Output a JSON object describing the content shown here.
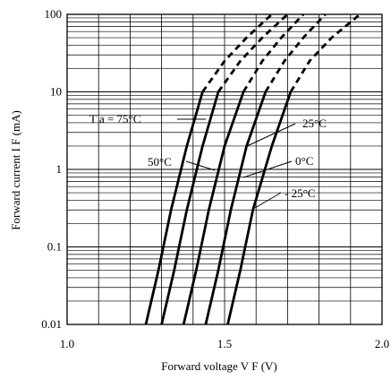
{
  "chart_data": {
    "type": "line",
    "xlabel": "Forward voltage V F (V)",
    "ylabel": "Forward current I F (mA)",
    "xlim": [
      1.0,
      2.0
    ],
    "ylim": [
      0.01,
      100
    ],
    "yscale": "log",
    "grid": true,
    "x_ticks": [
      "1.0",
      "1.5",
      "2.0"
    ],
    "y_ticks": [
      "0.01",
      "0.1",
      "1",
      "10",
      "100"
    ],
    "series": [
      {
        "name": "T a = 75°C",
        "solid": [
          [
            1.25,
            0.01
          ],
          [
            1.29,
            0.05
          ],
          [
            1.33,
            0.3
          ],
          [
            1.38,
            2
          ],
          [
            1.43,
            10
          ]
        ],
        "dashed": [
          [
            1.43,
            10
          ],
          [
            1.5,
            25
          ],
          [
            1.57,
            50
          ],
          [
            1.65,
            100
          ]
        ]
      },
      {
        "name": "50°C",
        "solid": [
          [
            1.3,
            0.01
          ],
          [
            1.34,
            0.05
          ],
          [
            1.38,
            0.3
          ],
          [
            1.43,
            2
          ],
          [
            1.48,
            10
          ]
        ],
        "dashed": [
          [
            1.48,
            10
          ],
          [
            1.55,
            25
          ],
          [
            1.62,
            50
          ],
          [
            1.7,
            100
          ]
        ]
      },
      {
        "name": "25°C",
        "solid": [
          [
            1.37,
            0.01
          ],
          [
            1.41,
            0.05
          ],
          [
            1.45,
            0.3
          ],
          [
            1.5,
            2
          ],
          [
            1.56,
            10
          ]
        ],
        "dashed": [
          [
            1.56,
            10
          ],
          [
            1.62,
            25
          ],
          [
            1.68,
            50
          ],
          [
            1.75,
            100
          ]
        ]
      },
      {
        "name": "0°C",
        "solid": [
          [
            1.44,
            0.01
          ],
          [
            1.48,
            0.05
          ],
          [
            1.52,
            0.3
          ],
          [
            1.57,
            2
          ],
          [
            1.63,
            10
          ]
        ],
        "dashed": [
          [
            1.63,
            10
          ],
          [
            1.69,
            25
          ],
          [
            1.75,
            50
          ],
          [
            1.82,
            100
          ]
        ]
      },
      {
        "name": "- 25°C",
        "solid": [
          [
            1.51,
            0.01
          ],
          [
            1.55,
            0.05
          ],
          [
            1.59,
            0.3
          ],
          [
            1.65,
            2
          ],
          [
            1.71,
            10
          ]
        ],
        "dashed": [
          [
            1.71,
            10
          ],
          [
            1.77,
            25
          ],
          [
            1.84,
            50
          ],
          [
            1.93,
            100
          ]
        ]
      }
    ],
    "annotations": [
      {
        "text": "T a = 75°C",
        "series": 0
      },
      {
        "text": "25°C",
        "series": 2
      },
      {
        "text": "50°C",
        "series": 1
      },
      {
        "text": "0°C",
        "series": 3
      },
      {
        "text": "- 25°C",
        "series": 4
      }
    ]
  }
}
